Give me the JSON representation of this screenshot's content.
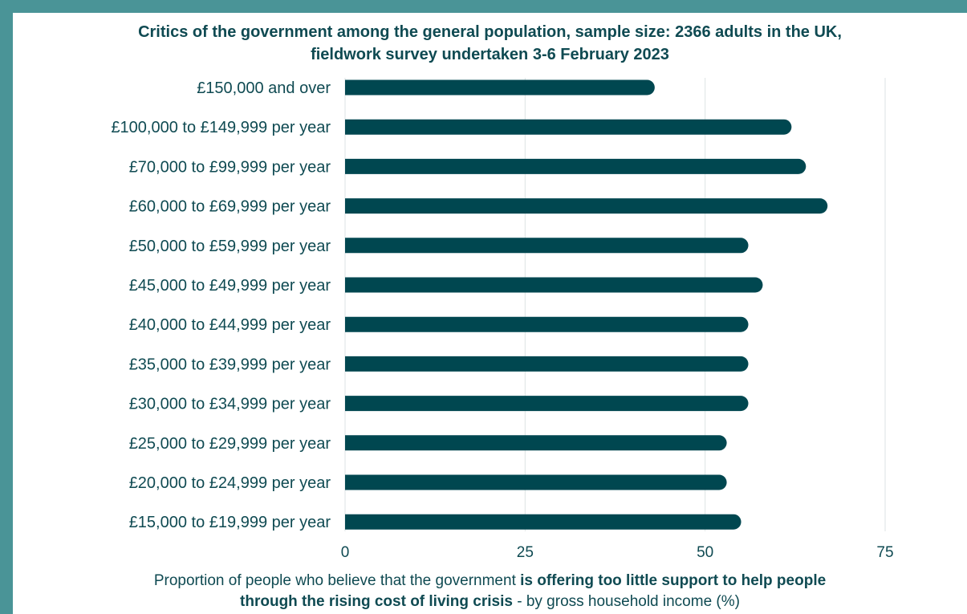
{
  "chart_data": {
    "type": "bar",
    "orientation": "horizontal",
    "title": [
      "Critics of the government among the general population, sample size: 2366 adults in the UK,",
      "fieldwork survey undertaken 3-6 February 2023"
    ],
    "categories": [
      "£150,000 and over",
      "£100,000 to £149,999 per year",
      "£70,000 to £99,999 per year",
      "£60,000 to £69,999 per year",
      "£50,000 to £59,999 per year",
      "£45,000 to £49,999 per year",
      "£40,000 to £44,999 per year",
      "£35,000 to £39,999 per year",
      "£30,000 to £34,999 per year",
      "£25,000 to £29,999 per year",
      "£20,000 to £24,999 per year",
      "£15,000 to £19,999 per year"
    ],
    "values": [
      43,
      62,
      64,
      67,
      56,
      58,
      56,
      56,
      56,
      53,
      53,
      55
    ],
    "xlim": [
      0,
      75
    ],
    "xticks": [
      0,
      25,
      50,
      75
    ],
    "grid": true,
    "bar_color": "#004750",
    "xlabel": {
      "line1_plain": "Proportion of people who believe that the government ",
      "line1_bold": "is offering too little support to help people",
      "line2_bold": "through the rising cost of living crisis",
      "line2_plain": " - by gross household income (%)"
    }
  },
  "frame_color": "#4a9497",
  "text_color": "#0f4a52"
}
